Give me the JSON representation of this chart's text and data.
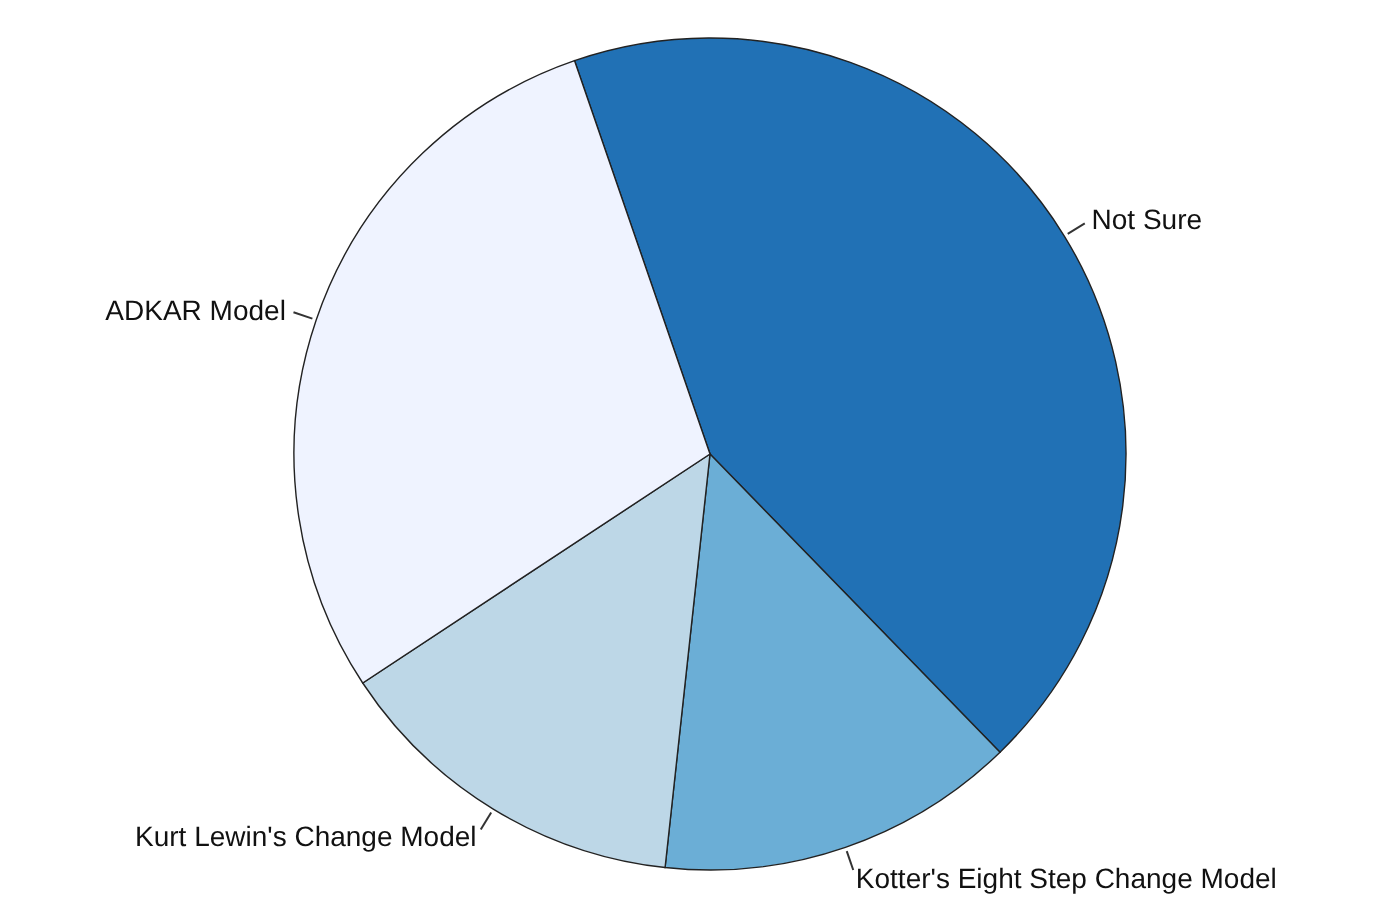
{
  "chart_data": {
    "type": "pie",
    "categories": [
      "Not Sure",
      "Kotter's Eight Step Change Model",
      "Kurt Lewin's Change Model",
      "ADKAR Model"
    ],
    "values": [
      43,
      14,
      14,
      29
    ],
    "colors": [
      "#2171b5",
      "#6baed6",
      "#bdd7e7",
      "#eff3ff"
    ]
  }
}
